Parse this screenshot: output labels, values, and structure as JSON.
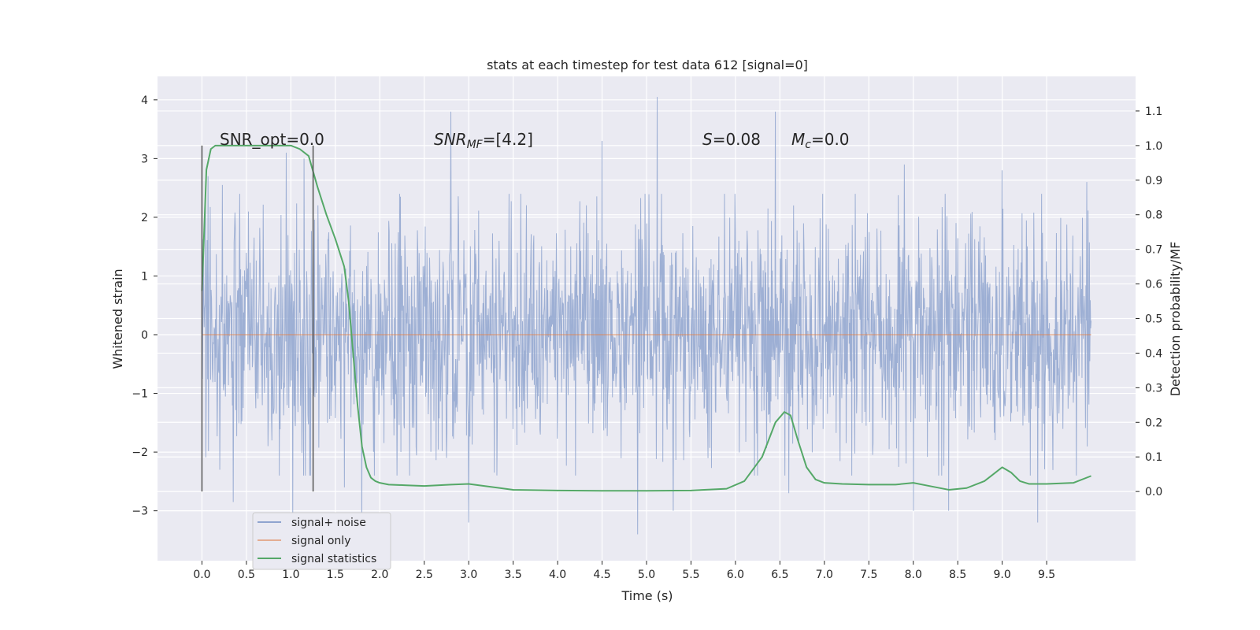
{
  "chart_data": {
    "type": "line",
    "title": "stats at each timestep for test data 612 [signal=0]",
    "xlabel": "Time (s)",
    "ylabel": "Whitened strain",
    "y2label": "Detection probability/MF",
    "xlim": [
      -0.5,
      10.5
    ],
    "ylim": [
      -3.85,
      4.4
    ],
    "y2lim": [
      -0.2,
      1.2
    ],
    "xticks": [
      "0.0",
      "0.5",
      "1.0",
      "1.5",
      "2.0",
      "2.5",
      "3.0",
      "3.5",
      "4.0",
      "4.5",
      "5.0",
      "5.5",
      "6.0",
      "6.5",
      "7.0",
      "7.5",
      "8.0",
      "8.5",
      "9.0",
      "9.5"
    ],
    "yticks": [
      "−3",
      "−2",
      "−1",
      "0",
      "1",
      "2",
      "3",
      "4"
    ],
    "y2ticks": [
      "0.0",
      "0.1",
      "0.2",
      "0.3",
      "0.4",
      "0.5",
      "0.6",
      "0.7",
      "0.8",
      "0.9",
      "1.0",
      "1.1"
    ],
    "grid": true,
    "legend_position": "lower-left",
    "colors": {
      "noise": "#8fa4cf",
      "signal_only": "#dd8452",
      "statistics": "#55a868",
      "background": "#eaeaf2",
      "marker": "#555555"
    },
    "annotations": {
      "snr_opt": "SNR_opt=0.0",
      "snr_mf_name": "SNR",
      "snr_mf_sub": "MF",
      "snr_mf_value": "=[4.2]",
      "s_name": "S",
      "s_value": "=0.08",
      "mc_name": "M",
      "mc_sub": "c",
      "mc_value": "=0.0"
    },
    "markers_x": [
      0.0,
      1.25
    ],
    "series": [
      {
        "name": "signal+ noise",
        "noise_sigma": 0.95,
        "t_start": 0.0,
        "t_end": 10.0,
        "peaks": [
          {
            "x": 0.07,
            "y": 2.7
          },
          {
            "x": 0.2,
            "y": -2.3
          },
          {
            "x": 0.23,
            "y": 2.55
          },
          {
            "x": 0.95,
            "y": 3.1
          },
          {
            "x": 1.02,
            "y": -3.1
          },
          {
            "x": 1.15,
            "y": 3.0
          },
          {
            "x": 1.6,
            "y": -2.6
          },
          {
            "x": 1.8,
            "y": -3.35
          },
          {
            "x": 2.8,
            "y": 3.8
          },
          {
            "x": 2.75,
            "y": -2.1
          },
          {
            "x": 3.0,
            "y": -3.2
          },
          {
            "x": 4.5,
            "y": 3.3
          },
          {
            "x": 4.9,
            "y": -3.4
          },
          {
            "x": 5.12,
            "y": 4.05
          },
          {
            "x": 5.3,
            "y": -3.0
          },
          {
            "x": 6.45,
            "y": 3.8
          },
          {
            "x": 6.6,
            "y": -2.7
          },
          {
            "x": 8.0,
            "y": -3.0
          },
          {
            "x": 8.4,
            "y": -3.0
          },
          {
            "x": 9.0,
            "y": 2.8
          },
          {
            "x": 9.4,
            "y": -3.2
          },
          {
            "x": 9.95,
            "y": 2.6
          },
          {
            "x": 0.35,
            "y": -2.85
          },
          {
            "x": 7.9,
            "y": 2.9
          }
        ]
      },
      {
        "name": "signal only",
        "x": [
          0.0,
          10.0
        ],
        "y": [
          0.0,
          0.0
        ]
      },
      {
        "name": "signal statistics",
        "x": [
          0.0,
          0.05,
          0.1,
          0.15,
          0.2,
          0.3,
          0.5,
          0.8,
          1.0,
          1.1,
          1.2,
          1.3,
          1.4,
          1.5,
          1.6,
          1.65,
          1.7,
          1.75,
          1.8,
          1.85,
          1.9,
          1.95,
          2.0,
          2.1,
          2.3,
          2.5,
          2.8,
          3.0,
          3.2,
          3.5,
          4.0,
          4.5,
          5.0,
          5.5,
          5.9,
          6.1,
          6.3,
          6.45,
          6.55,
          6.62,
          6.7,
          6.8,
          6.9,
          7.0,
          7.2,
          7.5,
          7.8,
          8.0,
          8.2,
          8.4,
          8.6,
          8.8,
          8.9,
          9.0,
          9.1,
          9.2,
          9.3,
          9.5,
          9.8,
          10.0
        ],
        "y": [
          0.58,
          0.93,
          0.99,
          1.0,
          1.0,
          1.0,
          1.0,
          1.0,
          1.0,
          0.99,
          0.97,
          0.88,
          0.8,
          0.73,
          0.65,
          0.55,
          0.4,
          0.25,
          0.13,
          0.07,
          0.04,
          0.03,
          0.025,
          0.02,
          0.018,
          0.016,
          0.02,
          0.022,
          0.015,
          0.005,
          0.003,
          0.002,
          0.002,
          0.003,
          0.008,
          0.03,
          0.1,
          0.2,
          0.23,
          0.22,
          0.15,
          0.07,
          0.035,
          0.025,
          0.022,
          0.02,
          0.02,
          0.025,
          0.015,
          0.005,
          0.01,
          0.03,
          0.05,
          0.07,
          0.055,
          0.03,
          0.022,
          0.022,
          0.025,
          0.045
        ]
      }
    ]
  }
}
